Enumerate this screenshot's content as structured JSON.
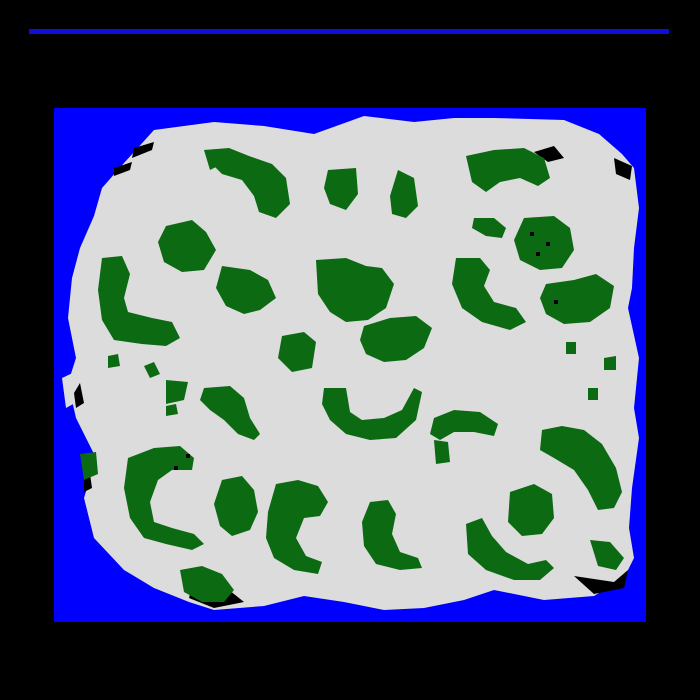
{
  "colors": {
    "background": "#000000",
    "water": "#0000ff",
    "land": "#dcdcdc",
    "forest": "#0b6a12",
    "shadow": "#000000",
    "bar": "#0a10d8"
  },
  "map": {
    "terrain_types": [
      "water",
      "land",
      "forest"
    ]
  }
}
